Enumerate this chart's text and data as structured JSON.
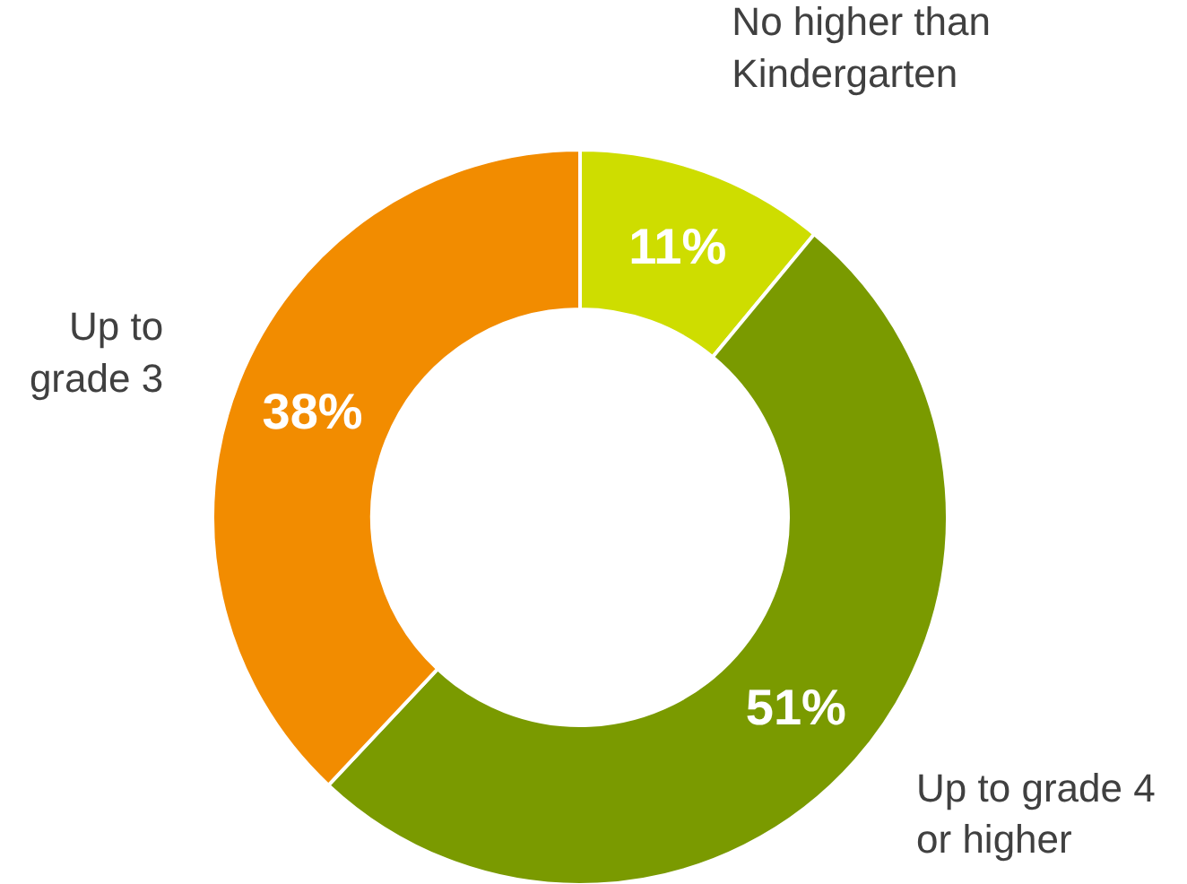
{
  "chart_data": {
    "type": "donut",
    "categories": [
      "No higher than\nKindergarten",
      "Up to grade 4\nor higher",
      "Up to\ngrade 3"
    ],
    "values": [
      11,
      51,
      38
    ],
    "colors": [
      "#cedd00",
      "#7a9a00",
      "#f28c00"
    ],
    "value_labels": [
      "11%",
      "51%",
      "38%"
    ]
  }
}
